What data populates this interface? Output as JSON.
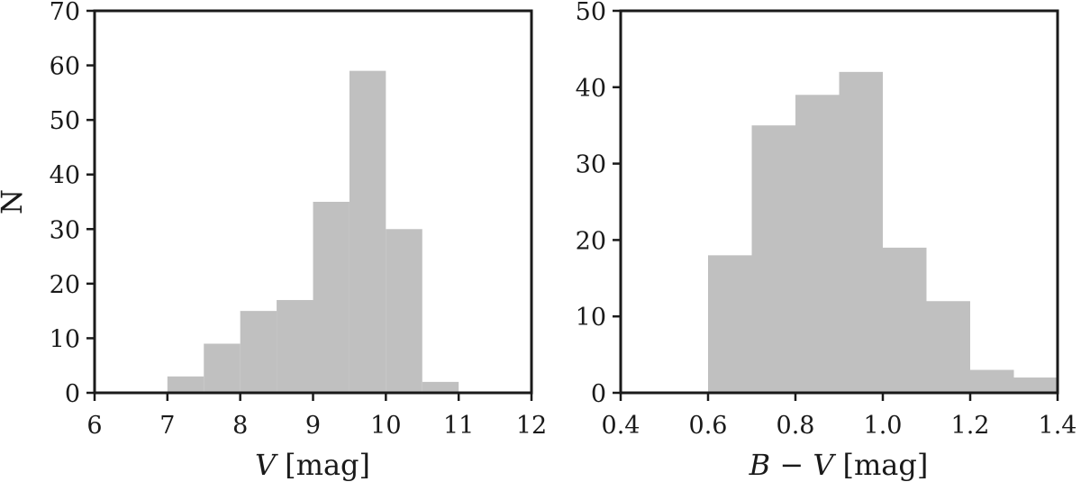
{
  "chart_data": [
    {
      "type": "bar",
      "histogram": true,
      "xlabel_var": "V",
      "xlabel_unit": "[mag]",
      "ylabel": "N",
      "xlim": [
        6,
        12
      ],
      "ylim": [
        0,
        70
      ],
      "xticks": [
        "6",
        "7",
        "8",
        "9",
        "10",
        "11",
        "12"
      ],
      "yticks": [
        "0",
        "10",
        "20",
        "30",
        "40",
        "50",
        "60",
        "70"
      ],
      "bins": [
        {
          "x0": 7.0,
          "x1": 7.5,
          "count": 3
        },
        {
          "x0": 7.5,
          "x1": 8.0,
          "count": 9
        },
        {
          "x0": 8.0,
          "x1": 8.5,
          "count": 15
        },
        {
          "x0": 8.5,
          "x1": 9.0,
          "count": 17
        },
        {
          "x0": 9.0,
          "x1": 9.5,
          "count": 35
        },
        {
          "x0": 9.5,
          "x1": 10.0,
          "count": 59
        },
        {
          "x0": 10.0,
          "x1": 10.5,
          "count": 30
        },
        {
          "x0": 10.5,
          "x1": 11.0,
          "count": 2
        }
      ],
      "bar_color": "#c0c0c0",
      "grid": false
    },
    {
      "type": "bar",
      "histogram": true,
      "xlabel_var": "B − V",
      "xlabel_unit": "[mag]",
      "ylabel": "",
      "xlim": [
        0.4,
        1.4
      ],
      "ylim": [
        0,
        50
      ],
      "xticks": [
        "0.4",
        "0.6",
        "0.8",
        "1.0",
        "1.2",
        "1.4"
      ],
      "yticks": [
        "0",
        "10",
        "20",
        "30",
        "40",
        "50"
      ],
      "bins": [
        {
          "x0": 0.6,
          "x1": 0.7,
          "count": 18
        },
        {
          "x0": 0.7,
          "x1": 0.8,
          "count": 35
        },
        {
          "x0": 0.8,
          "x1": 0.9,
          "count": 39
        },
        {
          "x0": 0.9,
          "x1": 1.0,
          "count": 42
        },
        {
          "x0": 1.0,
          "x1": 1.1,
          "count": 19
        },
        {
          "x0": 1.1,
          "x1": 1.2,
          "count": 12
        },
        {
          "x0": 1.2,
          "x1": 1.3,
          "count": 3
        },
        {
          "x0": 1.3,
          "x1": 1.4,
          "count": 2
        }
      ],
      "bar_color": "#c0c0c0",
      "grid": false
    }
  ]
}
